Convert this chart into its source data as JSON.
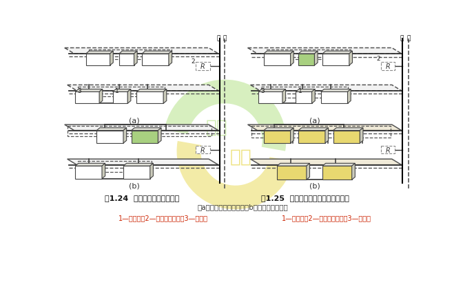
{
  "title1": "图1.24  上分式双管系统示意图",
  "title2": "图1.25  上分式单管跨越式系统示意图",
  "subtitle": "（a）双管异程式系统；（b）双管同程式系统",
  "legend1": "1—温控阀；2—户内热力入口；3—散热器",
  "legend2": "1—温控阀；2—户内热力入口；3—散热器",
  "bg_color": "#ffffff",
  "title_color": "#111111",
  "subtitle_color": "#333333",
  "legend_color": "#cc2200",
  "pipe_color": "#333333",
  "box_white": "#ffffff",
  "box_green": "#a8d080",
  "box_yellow": "#e8d870",
  "box_top": "#e0e0d8",
  "box_right": "#ccccbc",
  "floor_fc": "#f2f2f2",
  "floor_ec": "#555555",
  "R_ec": "#888888",
  "logo_green": "#b0e080",
  "logo_yellow": "#e8d850",
  "supply_color": "#000000",
  "riser_solid": "#000000",
  "riser_dashed": "#555555"
}
